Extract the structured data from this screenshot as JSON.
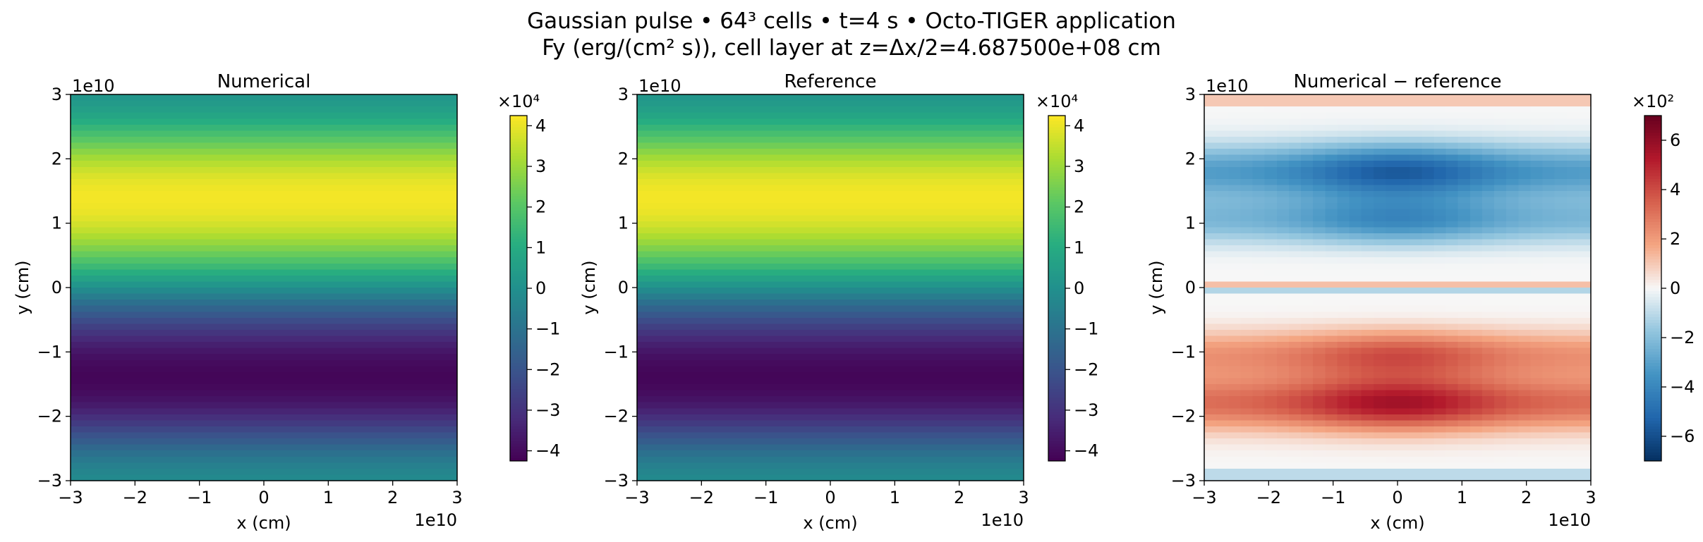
{
  "figure": {
    "title_line1": "Gaussian pulse • 64³ cells • t=4 s • Octo-TIGER application",
    "title_line2": "Fy (erg/(cm² s)), cell layer at z=Δx/2=4.687500e+08 cm"
  },
  "chart_data": [
    {
      "type": "heatmap",
      "title": "Numerical",
      "xlabel": "x (cm)",
      "ylabel": "y (cm)",
      "xlim": [
        -3,
        3
      ],
      "ylim": [
        -3,
        3
      ],
      "x_ticks": [
        "−3",
        "−2",
        "−1",
        "0",
        "1",
        "2",
        "3"
      ],
      "y_ticks": [
        "−3",
        "−2",
        "−1",
        "0",
        "1",
        "2",
        "3"
      ],
      "x_offset_label": "1e10",
      "y_offset_label": "1e10",
      "grid_cells": 64,
      "colormap": "viridis",
      "field": "pulse",
      "peak_value": 4.25,
      "peak_y": 1.5,
      "colorbar": {
        "range": [
          -4.25,
          4.25
        ],
        "ticks": [
          4,
          3,
          2,
          1,
          0,
          -1,
          -2,
          -3,
          -4
        ],
        "tick_labels": [
          "4",
          "3",
          "2",
          "1",
          "0",
          "−1",
          "−2",
          "−3",
          "−4"
        ],
        "scale_label": "×10⁴"
      }
    },
    {
      "type": "heatmap",
      "title": "Reference",
      "xlabel": "x (cm)",
      "ylabel": "y (cm)",
      "xlim": [
        -3,
        3
      ],
      "ylim": [
        -3,
        3
      ],
      "x_ticks": [
        "−3",
        "−2",
        "−1",
        "0",
        "1",
        "2",
        "3"
      ],
      "y_ticks": [
        "−3",
        "−2",
        "−1",
        "0",
        "1",
        "2",
        "3"
      ],
      "x_offset_label": "1e10",
      "y_offset_label": "1e10",
      "grid_cells": 64,
      "colormap": "viridis",
      "field": "pulse",
      "peak_value": 4.25,
      "peak_y": 1.5,
      "colorbar": {
        "range": [
          -4.25,
          4.25
        ],
        "ticks": [
          4,
          3,
          2,
          1,
          0,
          -1,
          -2,
          -3,
          -4
        ],
        "tick_labels": [
          "4",
          "3",
          "2",
          "1",
          "0",
          "−1",
          "−2",
          "−3",
          "−4"
        ],
        "scale_label": "×10⁴"
      }
    },
    {
      "type": "heatmap",
      "title": "Numerical − reference",
      "xlabel": "x (cm)",
      "ylabel": "y (cm)",
      "xlim": [
        -3,
        3
      ],
      "ylim": [
        -3,
        3
      ],
      "x_ticks": [
        "−3",
        "−2",
        "−1",
        "0",
        "1",
        "2",
        "3"
      ],
      "y_ticks": [
        "−3",
        "−2",
        "−1",
        "0",
        "1",
        "2",
        "3"
      ],
      "x_offset_label": "1e10",
      "y_offset_label": "1e10",
      "grid_cells": 64,
      "colormap": "RdBu_r",
      "field": "difference",
      "peak_value": 7.0,
      "peak_y": 1.8,
      "colorbar": {
        "range": [
          -7.0,
          7.0
        ],
        "ticks": [
          6,
          4,
          2,
          0,
          -2,
          -4,
          -6
        ],
        "tick_labels": [
          "6",
          "4",
          "2",
          "0",
          "−2",
          "−4",
          "−6"
        ],
        "scale_label": "×10²"
      }
    }
  ]
}
